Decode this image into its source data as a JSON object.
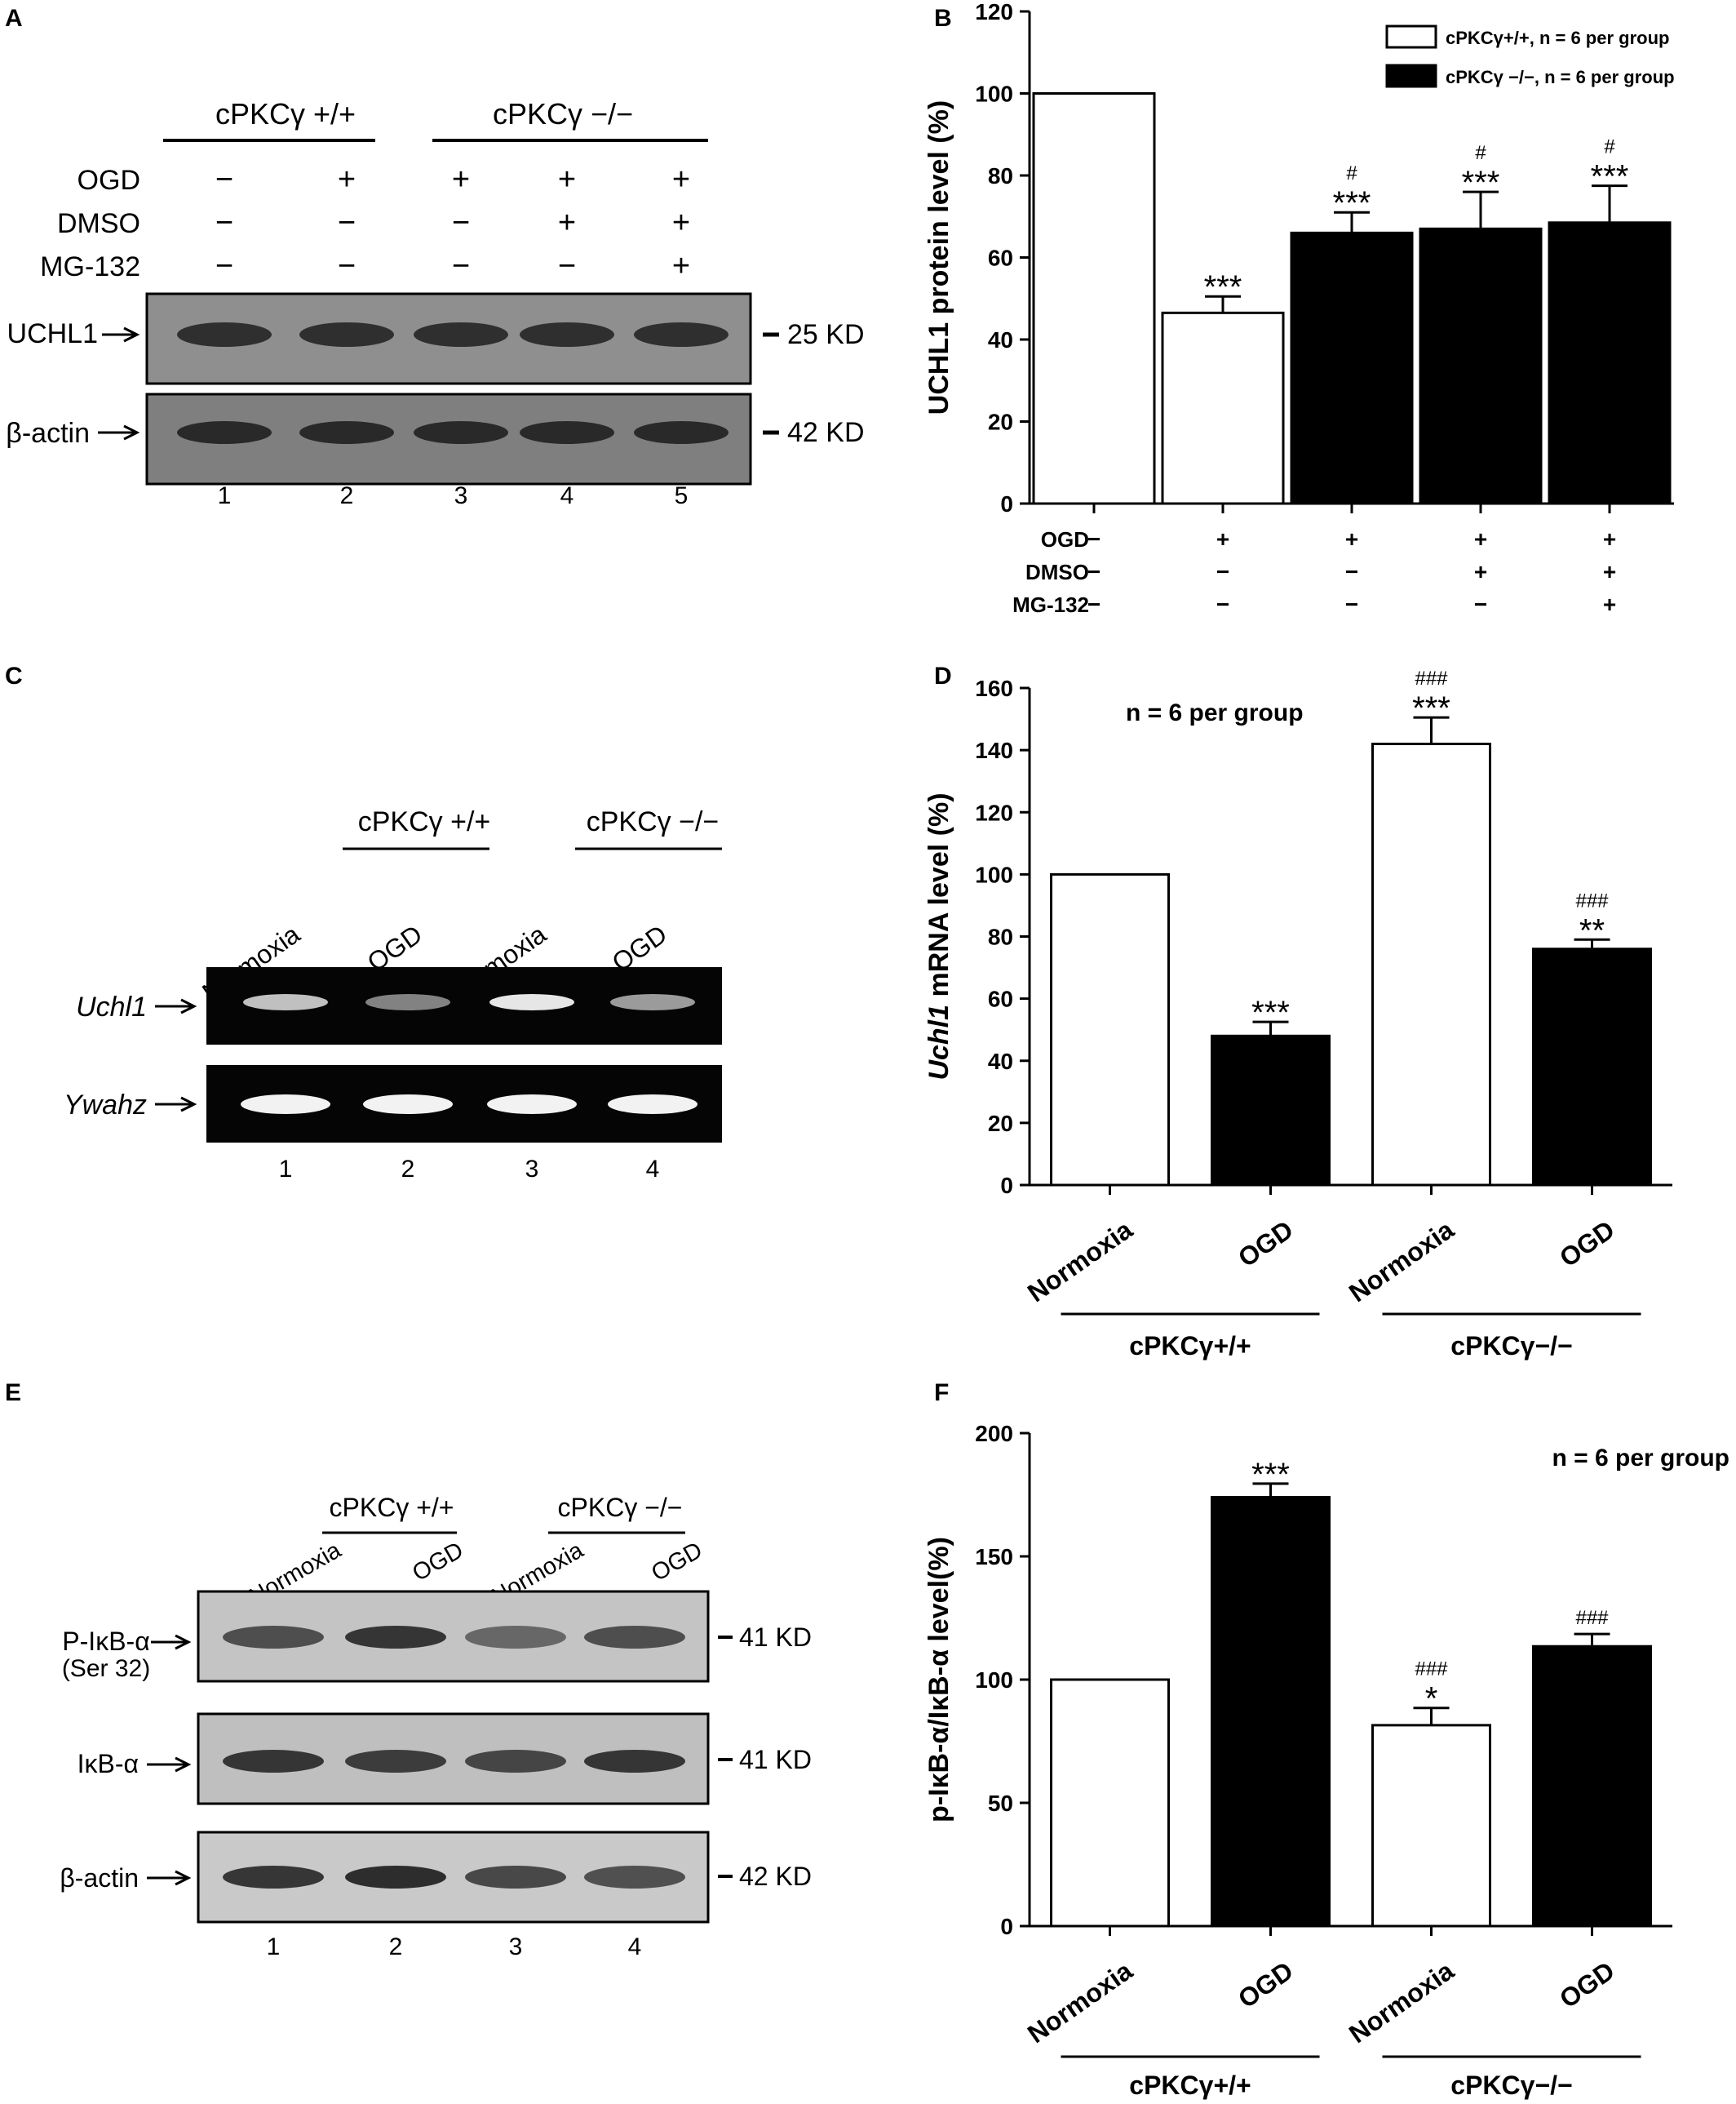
{
  "panels": {
    "A": {
      "letter": "A",
      "group_wt": "cPKCγ +/+",
      "group_ko": "cPKCγ −/−",
      "row_labels": [
        "OGD",
        "DMSO",
        "MG-132"
      ],
      "row_signs": [
        [
          "−",
          "+",
          "+",
          "+",
          "+"
        ],
        [
          "−",
          "−",
          "−",
          "+",
          "+"
        ],
        [
          "−",
          "−",
          "−",
          "−",
          "+"
        ]
      ],
      "bands": [
        {
          "label": "UCHL1",
          "size": "25 KD"
        },
        {
          "label": "β-actin",
          "size": "42 KD"
        }
      ],
      "lanes": [
        "1",
        "2",
        "3",
        "4",
        "5"
      ]
    },
    "C": {
      "letter": "C",
      "group_wt": "cPKCγ +/+",
      "group_ko": "cPKCγ −/−",
      "lane_conditions": [
        "Normoxia",
        "OGD",
        "Normoxia",
        "OGD"
      ],
      "bands": [
        {
          "label": "Uchl1"
        },
        {
          "label": "Ywahz"
        }
      ],
      "lanes": [
        "1",
        "2",
        "3",
        "4"
      ]
    },
    "E": {
      "letter": "E",
      "group_wt": "cPKCγ +/+",
      "group_ko": "cPKCγ −/−",
      "lane_conditions": [
        "Normoxia",
        "OGD",
        "Normoxia",
        "OGD"
      ],
      "bands": [
        {
          "label": "P-IκB-α",
          "sublabel": "(Ser 32)",
          "size": "41 KD"
        },
        {
          "label": "IκB-α",
          "size": "41 KD"
        },
        {
          "label": "β-actin",
          "size": "42 KD"
        }
      ],
      "lanes": [
        "1",
        "2",
        "3",
        "4"
      ]
    }
  },
  "chart_data": [
    {
      "panel": "B",
      "type": "bar",
      "ylabel": "UCHL1 protein level (%)",
      "ylim": [
        0,
        120
      ],
      "yticks": [
        0,
        20,
        40,
        60,
        80,
        100,
        120
      ],
      "values": [
        100,
        46.5,
        66,
        67,
        68.5
      ],
      "errors": [
        0,
        4,
        5,
        9,
        9
      ],
      "fills": [
        "white",
        "white",
        "black",
        "black",
        "black"
      ],
      "sig_star": [
        "",
        "***",
        "***",
        "***",
        "***"
      ],
      "sig_hash": [
        "",
        "",
        "#",
        "#",
        "#"
      ],
      "legend": [
        {
          "text": "cPKCγ+/+, n = 6 per group",
          "fill": "white"
        },
        {
          "text": "cPKCγ −/−, n = 6 per group",
          "fill": "black"
        }
      ],
      "legend_position": "top-right",
      "condition_rows": [
        {
          "label": "OGD",
          "signs": [
            "−",
            "+",
            "+",
            "+",
            "+"
          ]
        },
        {
          "label": "DMSO",
          "signs": [
            "−",
            "−",
            "−",
            "+",
            "+"
          ]
        },
        {
          "label": "MG-132",
          "signs": [
            "−",
            "−",
            "−",
            "−",
            "+"
          ]
        }
      ]
    },
    {
      "panel": "D",
      "type": "bar",
      "ylabel": "Uchl1 mRNA level (%)",
      "ylim": [
        0,
        160
      ],
      "yticks": [
        0,
        20,
        40,
        60,
        80,
        100,
        120,
        140,
        160
      ],
      "categories": [
        "Normoxia",
        "OGD",
        "Normoxia",
        "OGD"
      ],
      "values": [
        100,
        48,
        142,
        76
      ],
      "errors": [
        0,
        4.5,
        8.5,
        3
      ],
      "fills": [
        "white",
        "black",
        "white",
        "black"
      ],
      "sig_star": [
        "",
        "***",
        "***",
        "**"
      ],
      "sig_hash": [
        "",
        "",
        "###",
        "###"
      ],
      "annotation": "n = 6 per group",
      "group_wt": "cPKCγ+/+",
      "group_ko": "cPKCγ−/−"
    },
    {
      "panel": "F",
      "type": "bar",
      "ylabel": "p-IκB-α/IκB-α level(%)",
      "ylim": [
        0,
        200
      ],
      "yticks": [
        0,
        50,
        100,
        150,
        200
      ],
      "categories": [
        "Normoxia",
        "OGD",
        "Normoxia",
        "OGD"
      ],
      "values": [
        100,
        174,
        81.5,
        113.5
      ],
      "errors": [
        0,
        5.5,
        7,
        5
      ],
      "fills": [
        "white",
        "black",
        "white",
        "black"
      ],
      "sig_star": [
        "",
        "***",
        "*",
        ""
      ],
      "sig_hash": [
        "",
        "",
        "###",
        "###"
      ],
      "annotation": "n = 6 per group",
      "group_wt": "cPKCγ+/+",
      "group_ko": "cPKCγ−/−"
    }
  ]
}
